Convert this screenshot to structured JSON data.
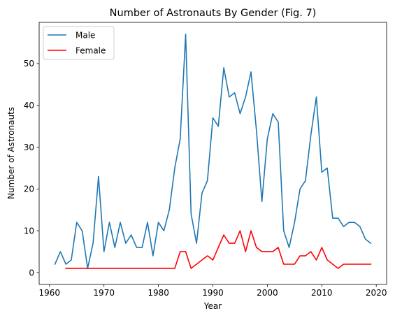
{
  "chart_data": {
    "type": "line",
    "title": "Number of Astronauts By Gender (Fig. 7)",
    "xlabel": "Year",
    "ylabel": "Number of Astronauts",
    "xlim": [
      1958.1,
      2021.9
    ],
    "ylim": [
      -2.85,
      59.85
    ],
    "xticks": [
      1960,
      1970,
      1980,
      1990,
      2000,
      2010,
      2020
    ],
    "yticks": [
      0,
      10,
      20,
      30,
      40,
      50
    ],
    "grid": false,
    "legend_position": "top-left",
    "series": [
      {
        "name": "Male",
        "color": "#1f77b4",
        "x": [
          1961,
          1962,
          1963,
          1964,
          1965,
          1966,
          1967,
          1968,
          1969,
          1970,
          1971,
          1972,
          1973,
          1974,
          1975,
          1976,
          1977,
          1978,
          1979,
          1980,
          1981,
          1982,
          1983,
          1984,
          1985,
          1986,
          1987,
          1988,
          1989,
          1990,
          1991,
          1992,
          1993,
          1994,
          1995,
          1996,
          1997,
          1998,
          1999,
          2000,
          2001,
          2002,
          2003,
          2004,
          2005,
          2006,
          2007,
          2008,
          2009,
          2010,
          2011,
          2012,
          2013,
          2014,
          2015,
          2016,
          2017,
          2018,
          2019
        ],
        "y": [
          2,
          5,
          2,
          3,
          12,
          10,
          1,
          7,
          23,
          5,
          12,
          6,
          12,
          7,
          9,
          6,
          6,
          12,
          4,
          12,
          10,
          15,
          25,
          32,
          57,
          14,
          7,
          19,
          22,
          37,
          35,
          49,
          42,
          43,
          38,
          42,
          48,
          34,
          17,
          32,
          38,
          36,
          10,
          6,
          12,
          20,
          22,
          33,
          42,
          24,
          25,
          13,
          13,
          11,
          12,
          12,
          11,
          8,
          7
        ]
      },
      {
        "name": "Female",
        "color": "#ff0000",
        "x": [
          1963,
          1964,
          1965,
          1966,
          1967,
          1968,
          1969,
          1970,
          1971,
          1972,
          1973,
          1974,
          1975,
          1976,
          1977,
          1978,
          1979,
          1980,
          1981,
          1982,
          1983,
          1984,
          1985,
          1986,
          1987,
          1988,
          1989,
          1990,
          1991,
          1992,
          1993,
          1994,
          1995,
          1996,
          1997,
          1998,
          1999,
          2000,
          2001,
          2002,
          2003,
          2004,
          2005,
          2006,
          2007,
          2008,
          2009,
          2010,
          2011,
          2012,
          2013,
          2014,
          2015,
          2016,
          2017,
          2018,
          2019
        ],
        "y": [
          1,
          1,
          1,
          1,
          1,
          1,
          1,
          1,
          1,
          1,
          1,
          1,
          1,
          1,
          1,
          1,
          1,
          1,
          1,
          1,
          1,
          5,
          5,
          1,
          2,
          3,
          4,
          3,
          6,
          9,
          7,
          7,
          10,
          5,
          10,
          6,
          5,
          5,
          5,
          6,
          2,
          2,
          2,
          4,
          4,
          5,
          3,
          6,
          3,
          2,
          1,
          2,
          2,
          2,
          2,
          2,
          2
        ]
      }
    ]
  }
}
